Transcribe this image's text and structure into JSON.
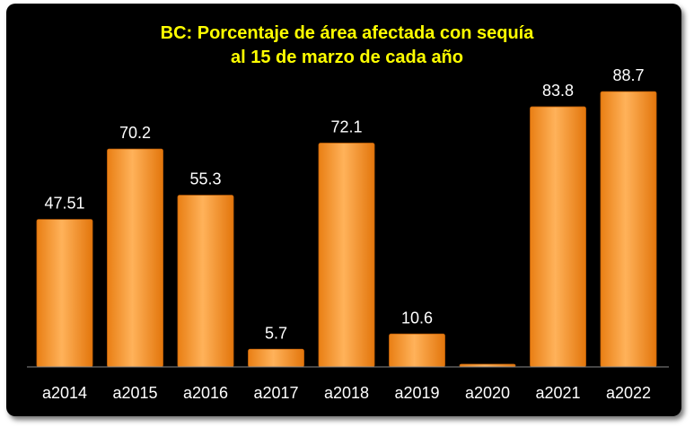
{
  "chart_data": {
    "type": "bar",
    "title_line1": "BC: Porcentaje de área afectada con sequía",
    "title_line2": "al 15 de marzo de cada año",
    "categories": [
      "a2014",
      "a2015",
      "a2016",
      "a2017",
      "a2018",
      "a2019",
      "a2020",
      "a2021",
      "a2022"
    ],
    "values": [
      47.51,
      70.2,
      55.3,
      5.7,
      72.1,
      10.6,
      0,
      83.8,
      88.7
    ],
    "value_labels": [
      "47.51",
      "70.2",
      "55.3",
      "5.7",
      "72.1",
      "10.6",
      "",
      "83.8",
      "88.7"
    ],
    "xlabel": "",
    "ylabel": "",
    "ylim": [
      0,
      100
    ],
    "grid": false,
    "legend": "none",
    "colors": {
      "background": "#000000",
      "title": "#ffff00",
      "bar": "#f59a2c",
      "bar_light": "#ffc27a",
      "labels": "#ffffff"
    }
  }
}
